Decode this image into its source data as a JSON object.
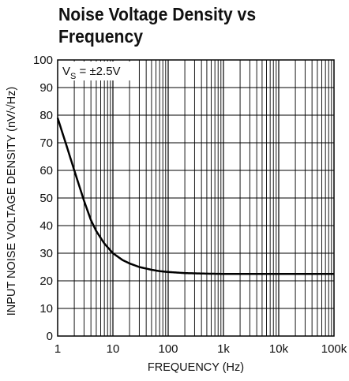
{
  "chart_data": {
    "type": "line",
    "title_lines": [
      "Noise Voltage Density vs",
      "Frequency"
    ],
    "xlabel": "FREQUENCY (Hz)",
    "ylabel": "INPUT NOISE VOLTAGE DENSITY (nV/√Hz)",
    "annotation": {
      "base": "V",
      "sub": "S",
      "rest": " = ±2.5V"
    },
    "x_scale": "log",
    "xlim": [
      1,
      100000
    ],
    "ylim": [
      0,
      100
    ],
    "x_ticks": [
      {
        "value": 1,
        "label": "1"
      },
      {
        "value": 10,
        "label": "10"
      },
      {
        "value": 100,
        "label": "100"
      },
      {
        "value": 1000,
        "label": "1k"
      },
      {
        "value": 10000,
        "label": "10k"
      },
      {
        "value": 100000,
        "label": "100k"
      }
    ],
    "y_ticks": [
      {
        "value": 0,
        "label": "0"
      },
      {
        "value": 10,
        "label": "10"
      },
      {
        "value": 20,
        "label": "20"
      },
      {
        "value": 30,
        "label": "30"
      },
      {
        "value": 40,
        "label": "40"
      },
      {
        "value": 50,
        "label": "50"
      },
      {
        "value": 60,
        "label": "60"
      },
      {
        "value": 70,
        "label": "70"
      },
      {
        "value": 80,
        "label": "80"
      },
      {
        "value": 90,
        "label": "90"
      },
      {
        "value": 100,
        "label": "100"
      }
    ],
    "grid": true,
    "series": [
      {
        "x": [
          1,
          1.5,
          2,
          3,
          4,
          5,
          7,
          10,
          15,
          20,
          30,
          50,
          70,
          100,
          200,
          500,
          1000,
          3000,
          10000,
          100000
        ],
        "y": [
          79,
          68,
          60,
          49,
          42,
          38,
          33.5,
          30,
          27.5,
          26.3,
          25,
          24,
          23.5,
          23.2,
          22.8,
          22.6,
          22.5,
          22.5,
          22.5,
          22.5
        ]
      }
    ],
    "colors": {
      "line": "#000000",
      "grid": "#000000"
    }
  }
}
